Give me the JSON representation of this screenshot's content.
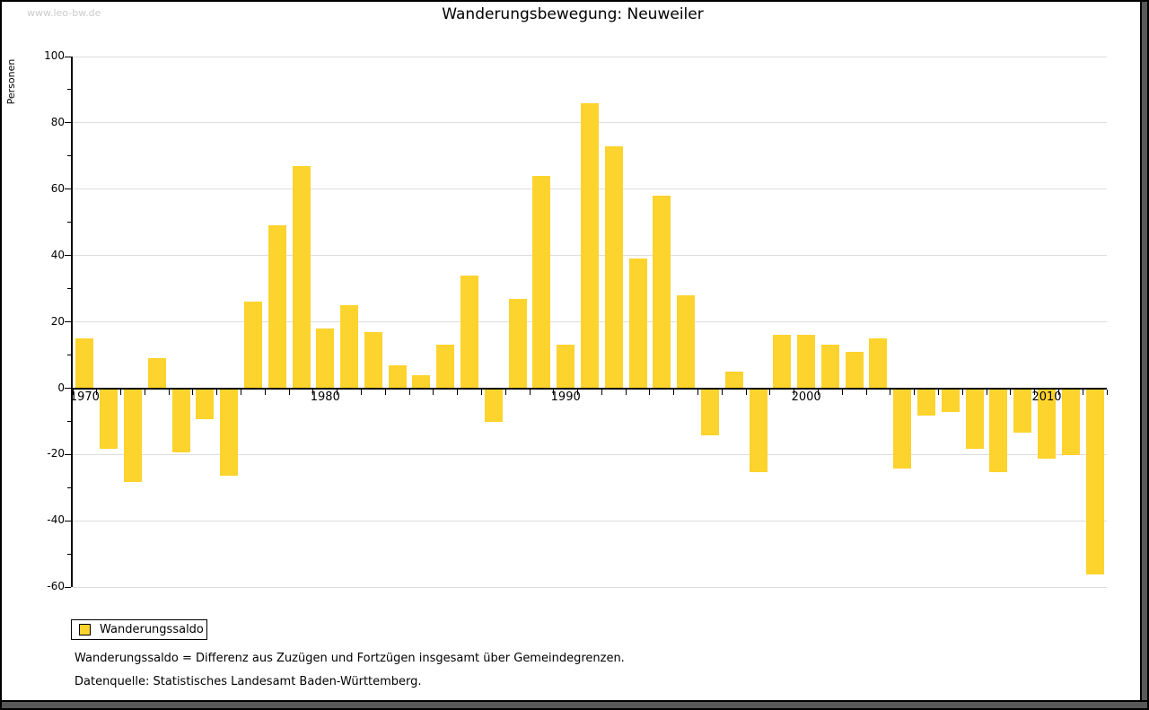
{
  "watermark": "www.leo-bw.de",
  "title": "Wanderungsbewegung: Neuweiler",
  "legend": {
    "label": "Wanderungssaldo"
  },
  "footnotes": [
    "Wanderungssaldo = Differenz aus Zuzügen und Fortzügen insgesamt über Gemeindegrenzen.",
    "Datenquelle: Statistisches Landesamt Baden-Württemberg."
  ],
  "colors": {
    "bar": "#FDD32D",
    "gridline": "#DDDDDD",
    "axis": "#000000",
    "watermark": "#CCCCCC",
    "frame_shadow": "#595959"
  },
  "chart_data": {
    "type": "bar",
    "title": "Wanderungsbewegung: Neuweiler",
    "ylabel": "Personen",
    "xlabel": "",
    "ylim": [
      -60,
      100
    ],
    "grid": "horizontal gridlines every 20, zero axis black",
    "legend_position": "bottom-left",
    "series_name": "Wanderungssaldo",
    "x": [
      1970,
      1971,
      1972,
      1973,
      1974,
      1975,
      1976,
      1977,
      1978,
      1979,
      1980,
      1981,
      1982,
      1983,
      1984,
      1985,
      1986,
      1987,
      1988,
      1989,
      1990,
      1991,
      1992,
      1993,
      1994,
      1995,
      1996,
      1997,
      1998,
      1999,
      2000,
      2001,
      2002,
      2003,
      2004,
      2005,
      2006,
      2007,
      2008,
      2009,
      2010,
      2011,
      2012
    ],
    "values": [
      15,
      -18,
      -28,
      9,
      -19,
      -9,
      -26,
      26,
      49,
      67,
      18,
      25,
      17,
      7,
      4,
      13,
      34,
      -10,
      27,
      64,
      13,
      86,
      73,
      39,
      58,
      28,
      -14,
      5,
      -25,
      16,
      16,
      13,
      11,
      15,
      -24,
      -8,
      -7,
      -18,
      -25,
      -13,
      -21,
      -20,
      -56
    ],
    "y_axis": {
      "major_ticks": [
        100,
        80,
        60,
        40,
        20,
        0,
        -20,
        -40,
        -60
      ],
      "minor_tick_step": 10
    },
    "x_axis": {
      "labeled_years": [
        1970,
        1980,
        1990,
        2000,
        2010
      ]
    }
  }
}
